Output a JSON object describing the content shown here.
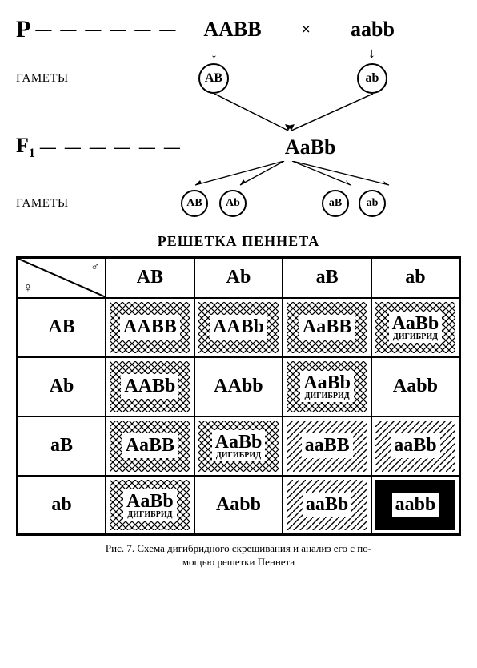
{
  "cross": {
    "p_label": "P",
    "dashes": "— — — — — —",
    "parent1": "AABB",
    "cross_sym": "×",
    "parent2": "aabb",
    "gametes_label": "ГАМЕТЫ",
    "gam_p1": "AB",
    "gam_p2": "ab",
    "f1_label": "F",
    "f1_sub": "1",
    "f1_geno": "AaBb",
    "f1_gam": [
      "AB",
      "Ab",
      "aB",
      "ab"
    ]
  },
  "table": {
    "title": "РЕШЕТКА   ПЕННЕТА",
    "male_sym": "♂",
    "female_sym": "♀",
    "col_headers": [
      "AB",
      "Ab",
      "aB",
      "ab"
    ],
    "row_headers": [
      "AB",
      "Ab",
      "aB",
      "ab"
    ],
    "dihybrid_label": "ДИГИБРИД",
    "cells": [
      [
        {
          "t": "AABB",
          "p": "cross"
        },
        {
          "t": "AABb",
          "p": "cross"
        },
        {
          "t": "AaBB",
          "p": "cross"
        },
        {
          "t": "AaBb",
          "p": "cross",
          "sub": true
        }
      ],
      [
        {
          "t": "AABb",
          "p": "cross"
        },
        {
          "t": "AAbb",
          "p": "none"
        },
        {
          "t": "AaBb",
          "p": "cross",
          "sub": true
        },
        {
          "t": "Aabb",
          "p": "none"
        }
      ],
      [
        {
          "t": "AaBB",
          "p": "cross"
        },
        {
          "t": "AaBb",
          "p": "cross",
          "sub": true
        },
        {
          "t": "aaBB",
          "p": "diag"
        },
        {
          "t": "aaBb",
          "p": "diag"
        }
      ],
      [
        {
          "t": "AaBb",
          "p": "cross",
          "sub": true
        },
        {
          "t": "Aabb",
          "p": "none"
        },
        {
          "t": "aaBb",
          "p": "diag"
        },
        {
          "t": "aabb",
          "p": "solid"
        }
      ]
    ]
  },
  "caption": {
    "line1": "Рис. 7. Схема дигибридного скрещивания и анализ его с по-",
    "line2": "мощью решетки Пеннета"
  },
  "style": {
    "bg": "#ffffff",
    "fg": "#000000",
    "hatch_stroke": "#000000"
  }
}
